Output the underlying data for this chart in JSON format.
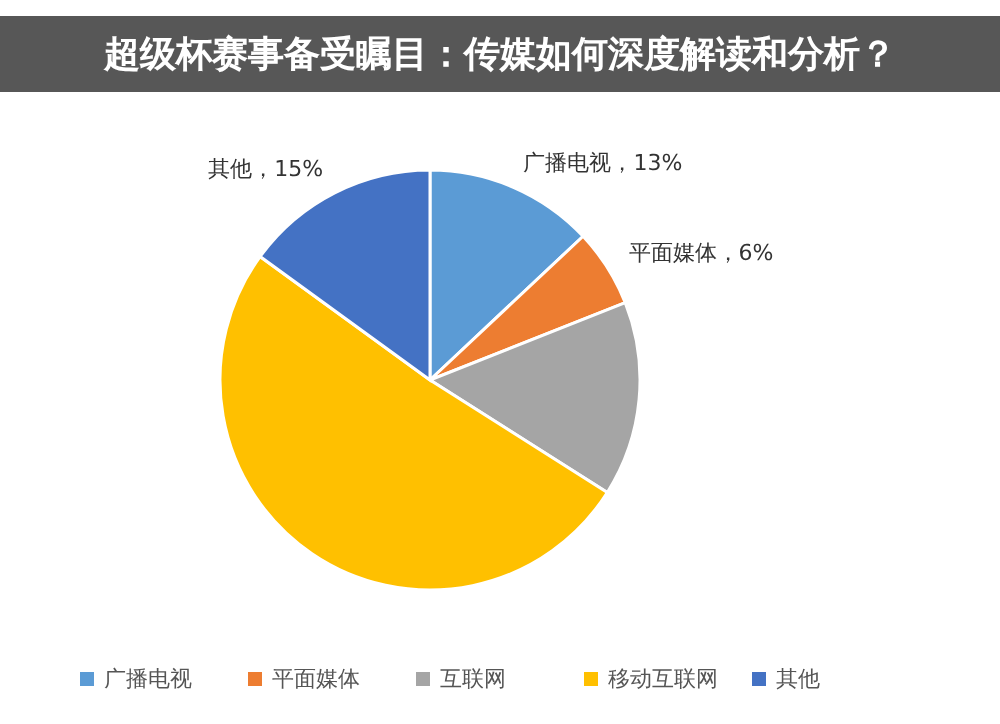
{
  "chart_data": {
    "type": "pie",
    "title": "超级杯赛事备受瞩目：传媒如何深度解读和分析？",
    "categories": [
      "广播电视",
      "平面媒体",
      "互联网",
      "移动互联网",
      "其他"
    ],
    "values": [
      13,
      6,
      15,
      51,
      15
    ],
    "colors": [
      "#5b9bd5",
      "#ed7d31",
      "#a5a5a5",
      "#ffc000",
      "#4472c4"
    ],
    "value_labels": [
      "广播电视，13%",
      "平面媒体，6%",
      null,
      null,
      "其他，15%"
    ],
    "legend": "bottom"
  }
}
